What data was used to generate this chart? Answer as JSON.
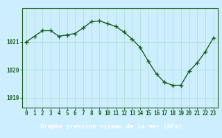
{
  "x": [
    0,
    1,
    2,
    3,
    4,
    5,
    6,
    7,
    8,
    9,
    10,
    11,
    12,
    13,
    14,
    15,
    16,
    17,
    18,
    19,
    20,
    21,
    22,
    23
  ],
  "y": [
    1021.0,
    1021.2,
    1021.4,
    1021.4,
    1021.2,
    1021.25,
    1021.3,
    1021.5,
    1021.72,
    1021.75,
    1021.65,
    1021.55,
    1021.35,
    1021.1,
    1020.8,
    1020.3,
    1019.85,
    1019.55,
    1019.45,
    1019.45,
    1019.95,
    1020.25,
    1020.65,
    1021.15
  ],
  "line_color": "#1a5c1a",
  "marker": "+",
  "markersize": 4,
  "linewidth": 1.0,
  "bg_color": "#cceeff",
  "grid_color": "#aaddcc",
  "xlabel": "Graphe pression niveau de la mer (hPa)",
  "xlabel_fontsize": 6.5,
  "xlabel_color": "#1a5c1a",
  "tick_labels": [
    "0",
    "1",
    "2",
    "3",
    "4",
    "5",
    "6",
    "7",
    "8",
    "9",
    "10",
    "11",
    "12",
    "13",
    "14",
    "15",
    "16",
    "17",
    "18",
    "19",
    "20",
    "21",
    "22",
    "23"
  ],
  "ytick_labels": [
    "1019",
    "1020",
    "1021"
  ],
  "ylim": [
    1018.65,
    1022.2
  ],
  "yticks": [
    1019,
    1020,
    1021
  ],
  "xlim": [
    -0.5,
    23.5
  ],
  "tick_fontsize": 5.5,
  "tick_color": "#1a5c1a",
  "spine_color": "#1a5c1a",
  "bottom_bar_color": "#2a6e2a",
  "bottom_bar_height": 0.18
}
